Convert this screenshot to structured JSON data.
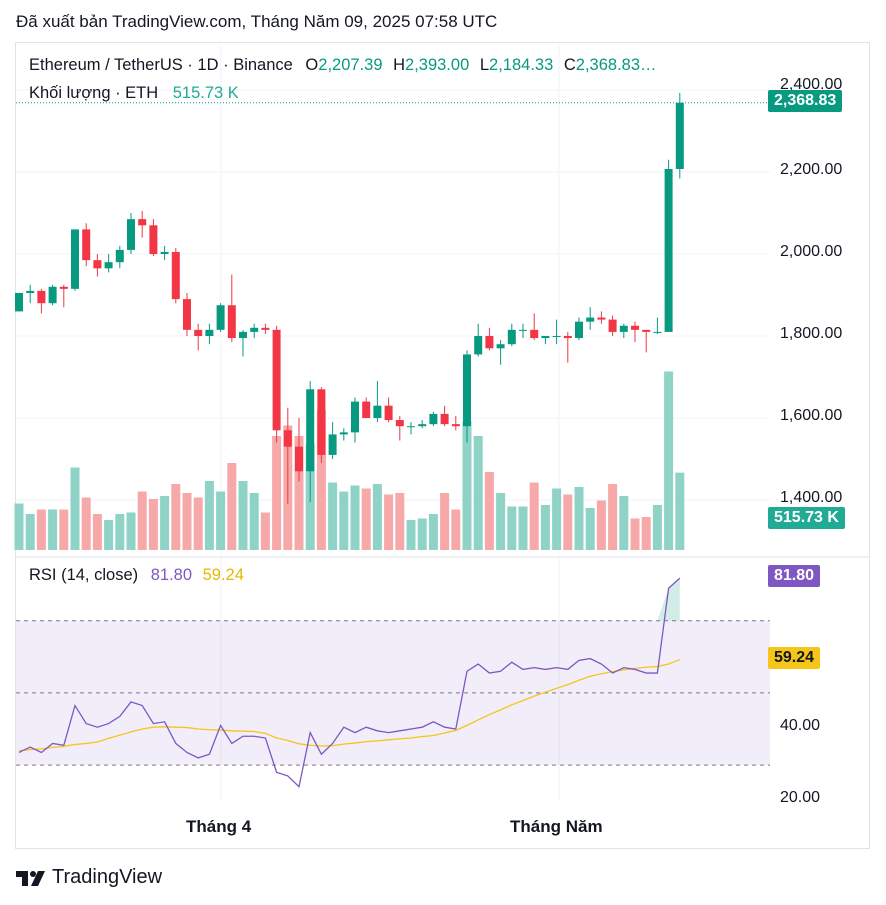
{
  "published": "Đã xuất bản TradingView.com, Tháng Năm 09, 2025 07:58 UTC",
  "legend": {
    "symbol": "Ethereum / TetherUS · 1D · Binance",
    "o_label": "O",
    "o_value": "2,207.39",
    "h_label": "H",
    "h_value": "2,393.00",
    "l_label": "L",
    "l_value": "2,184.33",
    "c_label": "C",
    "c_value": "2,368.83…",
    "volume_label": "Khối lượng · ETH",
    "volume_value": "515.73 K"
  },
  "rsi_legend": {
    "label": "RSI (14, close)",
    "rsi_value": "81.80",
    "ma_value": "59.24"
  },
  "tags": {
    "price": "2,368.83",
    "volume": "515.73 K",
    "rsi": "81.80",
    "rsi_ma": "59.24"
  },
  "price_axis": [
    "2,400.00",
    "2,200.00",
    "2,000.00",
    "1,800.00",
    "1,600.00",
    "1,400.00"
  ],
  "rsi_axis": [
    "40.00",
    "20.00"
  ],
  "x_axis": [
    "Tháng 4",
    "Tháng Năm"
  ],
  "brand": "TradingView",
  "colors": {
    "up": "#089981",
    "down": "#f23645",
    "rsi": "#7e57c2",
    "rsi_ma": "#f5c518"
  },
  "chart_data": [
    {
      "type": "candlestick",
      "title": "Ethereum / TetherUS · 1D · Binance",
      "ylim": [
        1320,
        2420
      ],
      "candles": [
        {
          "o": 1860,
          "h": 1905,
          "l": 1860,
          "c": 1905
        },
        {
          "o": 1905,
          "h": 1925,
          "l": 1880,
          "c": 1910
        },
        {
          "o": 1910,
          "h": 1915,
          "l": 1855,
          "c": 1880
        },
        {
          "o": 1880,
          "h": 1925,
          "l": 1875,
          "c": 1920
        },
        {
          "o": 1920,
          "h": 1925,
          "l": 1870,
          "c": 1915
        },
        {
          "o": 1915,
          "h": 2060,
          "l": 1910,
          "c": 2060
        },
        {
          "o": 2060,
          "h": 2075,
          "l": 1970,
          "c": 1985
        },
        {
          "o": 1985,
          "h": 2000,
          "l": 1945,
          "c": 1965
        },
        {
          "o": 1965,
          "h": 2000,
          "l": 1955,
          "c": 1980
        },
        {
          "o": 1980,
          "h": 2020,
          "l": 1965,
          "c": 2010
        },
        {
          "o": 2010,
          "h": 2100,
          "l": 2000,
          "c": 2085
        },
        {
          "o": 2085,
          "h": 2105,
          "l": 2040,
          "c": 2070
        },
        {
          "o": 2070,
          "h": 2085,
          "l": 1995,
          "c": 2000
        },
        {
          "o": 2000,
          "h": 2020,
          "l": 1985,
          "c": 2005
        },
        {
          "o": 2005,
          "h": 2015,
          "l": 1880,
          "c": 1890
        },
        {
          "o": 1890,
          "h": 1905,
          "l": 1800,
          "c": 1815
        },
        {
          "o": 1815,
          "h": 1830,
          "l": 1765,
          "c": 1800
        },
        {
          "o": 1800,
          "h": 1830,
          "l": 1780,
          "c": 1815
        },
        {
          "o": 1815,
          "h": 1880,
          "l": 1810,
          "c": 1875
        },
        {
          "o": 1875,
          "h": 1950,
          "l": 1785,
          "c": 1795
        },
        {
          "o": 1795,
          "h": 1815,
          "l": 1750,
          "c": 1810
        },
        {
          "o": 1810,
          "h": 1830,
          "l": 1795,
          "c": 1820
        },
        {
          "o": 1820,
          "h": 1830,
          "l": 1805,
          "c": 1815
        },
        {
          "o": 1815,
          "h": 1825,
          "l": 1540,
          "c": 1570
        },
        {
          "o": 1570,
          "h": 1625,
          "l": 1390,
          "c": 1530
        },
        {
          "o": 1530,
          "h": 1600,
          "l": 1445,
          "c": 1470
        },
        {
          "o": 1470,
          "h": 1690,
          "l": 1395,
          "c": 1670
        },
        {
          "o": 1670,
          "h": 1675,
          "l": 1490,
          "c": 1510
        },
        {
          "o": 1510,
          "h": 1590,
          "l": 1500,
          "c": 1560
        },
        {
          "o": 1560,
          "h": 1575,
          "l": 1545,
          "c": 1565
        },
        {
          "o": 1565,
          "h": 1650,
          "l": 1540,
          "c": 1640
        },
        {
          "o": 1640,
          "h": 1650,
          "l": 1600,
          "c": 1600
        },
        {
          "o": 1600,
          "h": 1690,
          "l": 1590,
          "c": 1630
        },
        {
          "o": 1630,
          "h": 1650,
          "l": 1590,
          "c": 1595
        },
        {
          "o": 1595,
          "h": 1605,
          "l": 1545,
          "c": 1580
        },
        {
          "o": 1580,
          "h": 1590,
          "l": 1560,
          "c": 1580
        },
        {
          "o": 1580,
          "h": 1595,
          "l": 1575,
          "c": 1585
        },
        {
          "o": 1585,
          "h": 1615,
          "l": 1580,
          "c": 1610
        },
        {
          "o": 1610,
          "h": 1630,
          "l": 1580,
          "c": 1585
        },
        {
          "o": 1585,
          "h": 1605,
          "l": 1570,
          "c": 1580
        },
        {
          "o": 1580,
          "h": 1765,
          "l": 1540,
          "c": 1755
        },
        {
          "o": 1755,
          "h": 1830,
          "l": 1750,
          "c": 1800
        },
        {
          "o": 1800,
          "h": 1820,
          "l": 1765,
          "c": 1770
        },
        {
          "o": 1770,
          "h": 1790,
          "l": 1730,
          "c": 1780
        },
        {
          "o": 1780,
          "h": 1830,
          "l": 1775,
          "c": 1815
        },
        {
          "o": 1815,
          "h": 1830,
          "l": 1795,
          "c": 1815
        },
        {
          "o": 1815,
          "h": 1855,
          "l": 1790,
          "c": 1795
        },
        {
          "o": 1795,
          "h": 1800,
          "l": 1780,
          "c": 1800
        },
        {
          "o": 1800,
          "h": 1840,
          "l": 1780,
          "c": 1800
        },
        {
          "o": 1800,
          "h": 1810,
          "l": 1735,
          "c": 1795
        },
        {
          "o": 1795,
          "h": 1845,
          "l": 1790,
          "c": 1835
        },
        {
          "o": 1835,
          "h": 1870,
          "l": 1815,
          "c": 1845
        },
        {
          "o": 1845,
          "h": 1860,
          "l": 1830,
          "c": 1840
        },
        {
          "o": 1840,
          "h": 1850,
          "l": 1800,
          "c": 1810
        },
        {
          "o": 1810,
          "h": 1830,
          "l": 1795,
          "c": 1825
        },
        {
          "o": 1825,
          "h": 1835,
          "l": 1785,
          "c": 1815
        },
        {
          "o": 1815,
          "h": 1815,
          "l": 1760,
          "c": 1810
        },
        {
          "o": 1810,
          "h": 1845,
          "l": 1805,
          "c": 1810
        },
        {
          "o": 1810,
          "h": 2230,
          "l": 1810,
          "c": 2207.39
        },
        {
          "o": 2207.39,
          "h": 2393,
          "l": 2184.33,
          "c": 2368.83
        }
      ],
      "volume_k": [
        310,
        240,
        270,
        270,
        270,
        550,
        350,
        240,
        200,
        240,
        250,
        390,
        340,
        360,
        440,
        380,
        350,
        460,
        390,
        580,
        460,
        380,
        250,
        760,
        830,
        760,
        710,
        930,
        450,
        390,
        430,
        410,
        440,
        370,
        380,
        200,
        210,
        240,
        380,
        270,
        860,
        760,
        520,
        380,
        290,
        290,
        450,
        300,
        410,
        370,
        420,
        280,
        330,
        440,
        360,
        210,
        220,
        300,
        1190,
        515.73
      ]
    },
    {
      "type": "line",
      "title": "RSI (14, close)",
      "ylim": [
        15,
        95
      ],
      "series": [
        {
          "name": "RSI (14, close)",
          "values": [
            33.5,
            35.0,
            33.5,
            36.0,
            35.5,
            46.5,
            41.5,
            40.5,
            41.5,
            43.5,
            47.5,
            46.5,
            41.5,
            42.0,
            36.0,
            33.5,
            32.0,
            33.0,
            41.0,
            36.0,
            38.0,
            38.0,
            37.5,
            28.0,
            27.0,
            24.0,
            39.0,
            33.0,
            36.0,
            40.5,
            39.0,
            40.5,
            39.5,
            39.0,
            39.5,
            40.0,
            40.5,
            42.0,
            40.5,
            40.0,
            56.0,
            58.0,
            55.5,
            56.0,
            58.5,
            56.5,
            57.0,
            56.5,
            57.0,
            56.5,
            59.0,
            59.5,
            58.0,
            55.5,
            57.0,
            56.5,
            55.5,
            55.5,
            79.0,
            81.8
          ]
        },
        {
          "name": "RSI-based MA",
          "values": [
            34.0,
            34.3,
            34.5,
            34.9,
            35.2,
            35.7,
            36.0,
            36.4,
            37.4,
            38.3,
            39.2,
            40.0,
            40.5,
            40.6,
            40.5,
            40.4,
            40.0,
            39.8,
            39.7,
            39.5,
            39.4,
            39.3,
            38.8,
            37.5,
            36.8,
            35.9,
            35.5,
            35.3,
            35.4,
            35.8,
            36.1,
            36.5,
            36.7,
            37.0,
            37.3,
            37.5,
            37.9,
            38.2,
            38.9,
            39.6,
            41.0,
            42.5,
            44.0,
            45.3,
            46.7,
            47.9,
            49.1,
            50.2,
            51.3,
            52.3,
            53.5,
            54.6,
            55.3,
            55.9,
            56.4,
            56.8,
            57.1,
            57.3,
            58.0,
            59.24
          ]
        }
      ]
    }
  ]
}
